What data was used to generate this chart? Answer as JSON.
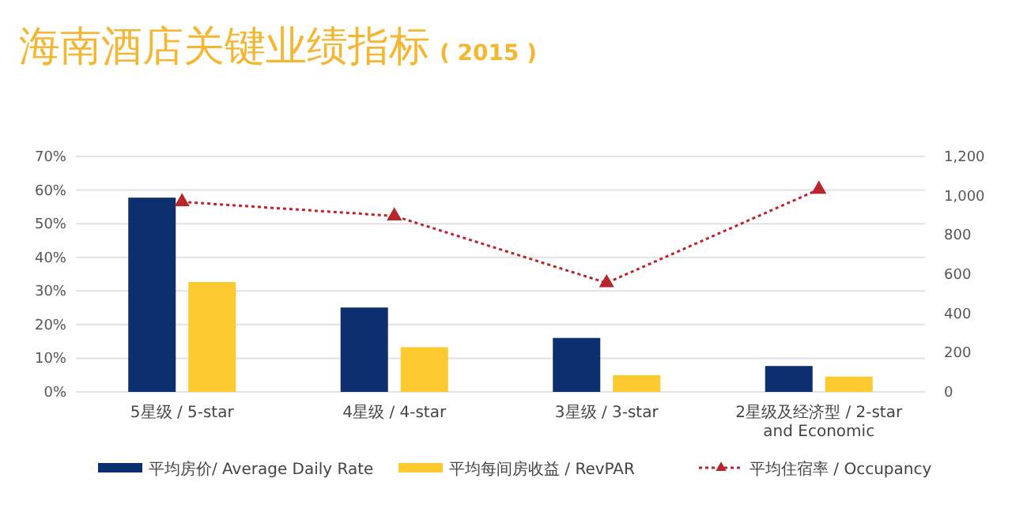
{
  "chart_data": {
    "type": "bar",
    "title": "海南酒店关键业绩指标",
    "subtitle": "( 2015 )",
    "categories": [
      "5星级  / 5-star",
      "4星级  / 4-star",
      "3星级  / 3-star",
      "2星级及经济型  / 2-star and Economic"
    ],
    "series": [
      {
        "name": "平均房价/ Average Daily Rate",
        "color": "#0d2f6e",
        "axis": "y2",
        "values": [
          990,
          430,
          275,
          132
        ]
      },
      {
        "name": "平均每间房收益  / RevPAR",
        "color": "#fcc92f",
        "axis": "y2",
        "values": [
          560,
          228,
          85,
          78
        ]
      },
      {
        "name": "平均住宿率  / Occupancy",
        "type": "line",
        "color": "#b8262c",
        "axis": "y",
        "marker": "triangle",
        "line_style": "dotted",
        "values": [
          56.5,
          52.3,
          32.4,
          60.2
        ]
      }
    ],
    "ylim": [
      0,
      70
    ],
    "yticks": [
      {
        "value": 0,
        "label": "0%"
      },
      {
        "value": 10,
        "label": "10%"
      },
      {
        "value": 20,
        "label": "20%"
      },
      {
        "value": 30,
        "label": "30%"
      },
      {
        "value": 40,
        "label": "40%"
      },
      {
        "value": 50,
        "label": "50%"
      },
      {
        "value": 60,
        "label": "60%"
      },
      {
        "value": 70,
        "label": "70%"
      }
    ],
    "y2lim": [
      0,
      1200
    ],
    "y2ticks": [
      0,
      200,
      400,
      600,
      800,
      {
        "value": 1000,
        "label": "1,000"
      },
      {
        "value": 1200,
        "label": "1,200"
      }
    ],
    "grid": "y",
    "legend": "bottom"
  }
}
